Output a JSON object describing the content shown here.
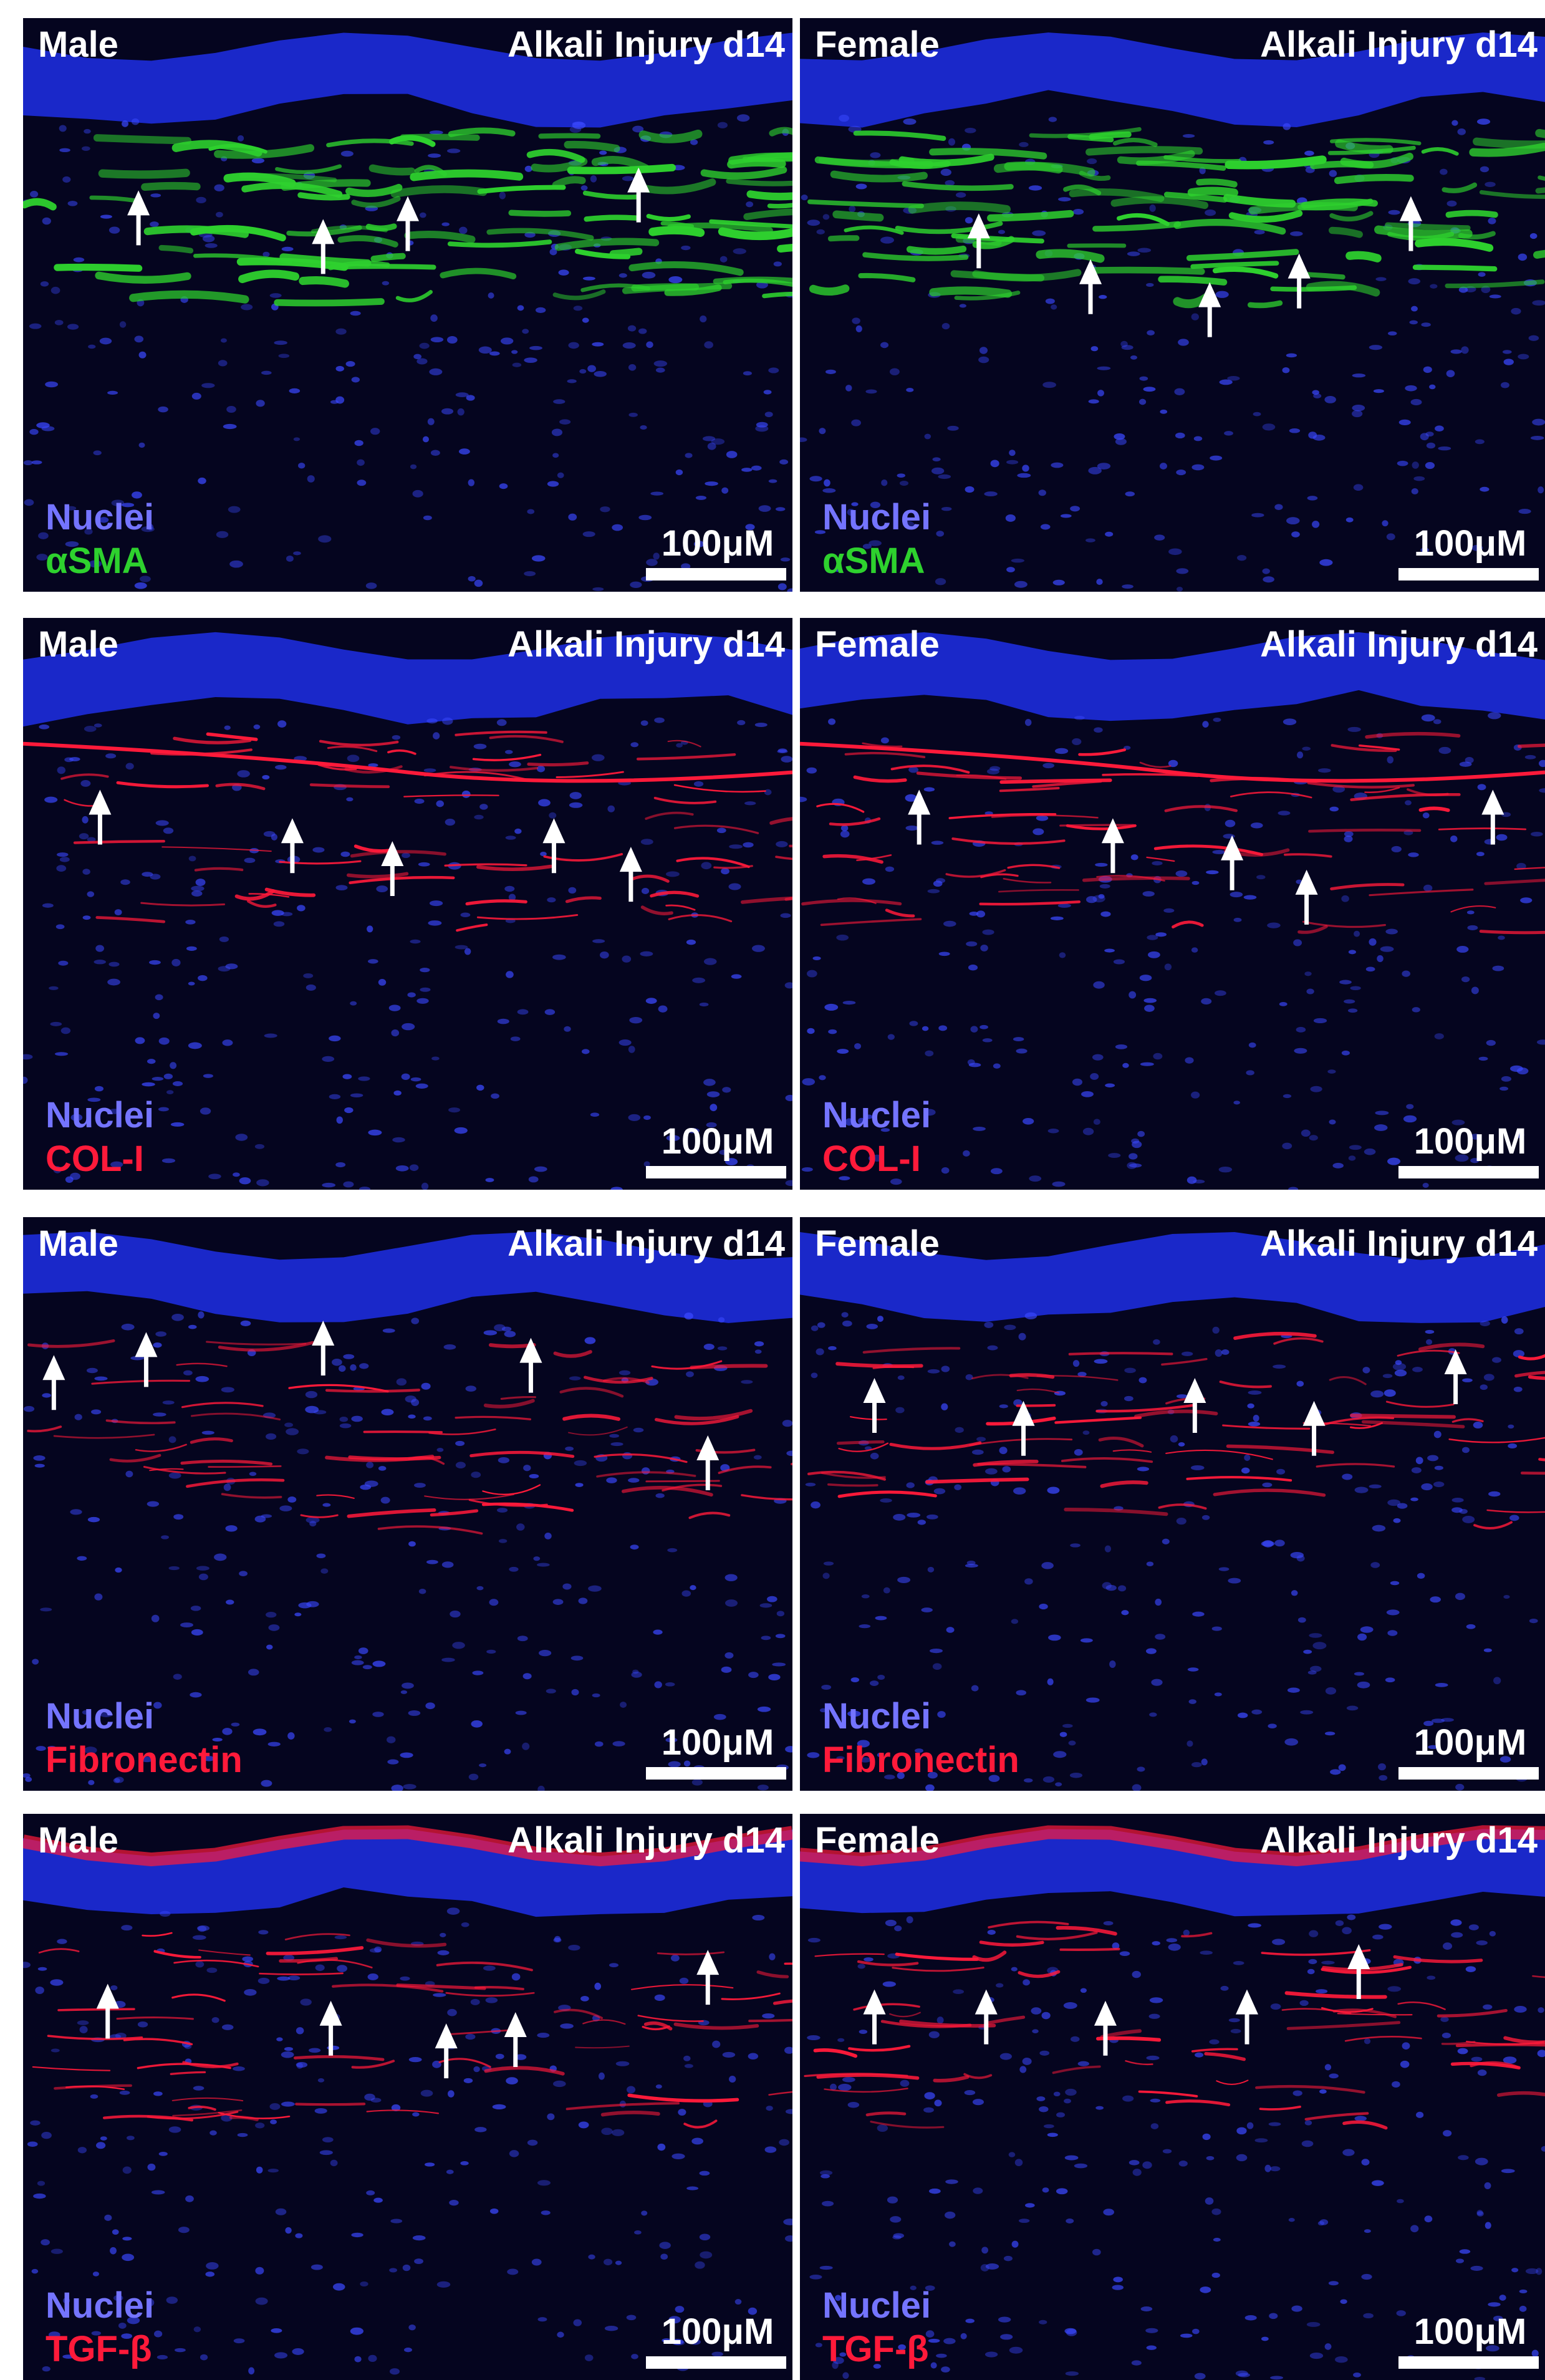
{
  "panels": [
    {
      "sex": "Male",
      "condition": "Alkali Injury d14",
      "nuclei": "Nuclei",
      "marker": "αSMA",
      "scale_bar": "100μM",
      "color": "#2ed12e"
    },
    {
      "sex": "Female",
      "condition": "Alkali Injury d14",
      "nuclei": "Nuclei",
      "marker": "αSMA",
      "scale_bar": "100μM",
      "color": "#2ed12e"
    },
    {
      "sex": "Male",
      "condition": "Alkali Injury d14",
      "nuclei": "Nuclei",
      "marker": "COL-I",
      "scale_bar": "100μM",
      "color": "#ff1a3a"
    },
    {
      "sex": "Female",
      "condition": "Alkali Injury d14",
      "nuclei": "Nuclei",
      "marker": "COL-I",
      "scale_bar": "100μM",
      "color": "#ff1a3a"
    },
    {
      "sex": "Male",
      "condition": "Alkali Injury d14",
      "nuclei": "Nuclei",
      "marker": "Fibronectin",
      "scale_bar": "100μM",
      "color": "#ff1a3a"
    },
    {
      "sex": "Female",
      "condition": "Alkali Injury d14",
      "nuclei": "Nuclei",
      "marker": "Fibronectin",
      "scale_bar": "100μM",
      "color": "#ff1a3a"
    },
    {
      "sex": "Male",
      "condition": "Alkali Injury d14",
      "nuclei": "Nuclei",
      "marker": "TGF-β",
      "scale_bar": "100μM",
      "color": "#ff1a3a"
    },
    {
      "sex": "Female",
      "condition": "Alkali Injury d14",
      "nuclei": "Nuclei",
      "marker": "TGF-β",
      "scale_bar": "100μM",
      "color": "#ff1a3a"
    }
  ]
}
